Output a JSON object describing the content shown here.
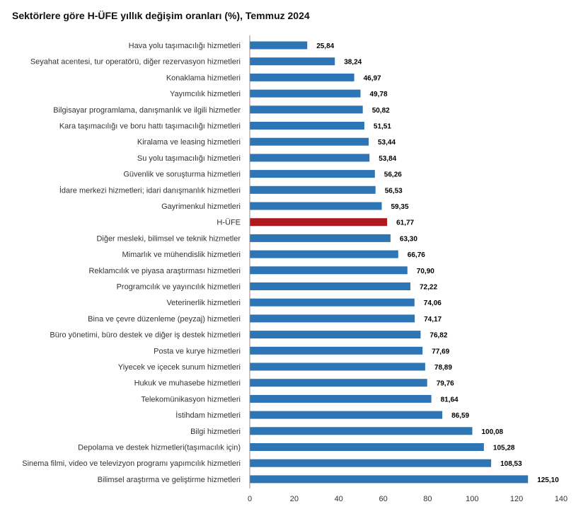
{
  "chart_data": {
    "type": "bar",
    "orientation": "horizontal",
    "title": "Sektörlere göre H-ÜFE yıllık değişim oranları (%), Temmuz 2024",
    "xlabel": "",
    "ylabel": "",
    "xlim": [
      0,
      140
    ],
    "xticks": [
      0,
      20,
      40,
      60,
      80,
      100,
      120,
      140
    ],
    "categories": [
      "Hava yolu taşımacılığı hizmetleri",
      "Seyahat acentesi, tur operatörü, diğer rezervasyon hizmetleri",
      "Konaklama hizmetleri",
      "Yayımcılık hizmetleri",
      "Bilgisayar programlama, danışmanlık ve ilgili hizmetler",
      "Kara taşımacılığı ve boru hattı taşımacılığı hizmetleri",
      "Kiralama ve leasing hizmetleri",
      "Su yolu taşımacılığı hizmetleri",
      "Güvenlik ve soruşturma hizmetleri",
      "İdare merkezi hizmetleri; idari danışmanlık hizmetleri",
      "Gayrimenkul hizmetleri",
      "H-ÜFE",
      "Diğer mesleki, bilimsel ve teknik hizmetler",
      "Mimarlık ve mühendislik hizmetleri",
      "Reklamcılık ve piyasa araştırması hizmetleri",
      "Programcılık ve yayıncılık hizmetleri",
      "Veterinerlik hizmetleri",
      "Bina ve çevre düzenleme (peyzaj) hizmetleri",
      "Büro yönetimi, büro destek ve diğer iş destek hizmetleri",
      "Posta ve kurye hizmetleri",
      "Yiyecek ve içecek sunum hizmetleri",
      "Hukuk ve muhasebe hizmetleri",
      "Telekomünikasyon hizmetleri",
      "İstihdam hizmetleri",
      "Bilgi hizmetleri",
      "Depolama ve destek hizmetleri(taşımacılık için)",
      "Sinema filmi, video ve televizyon programı yapımcılık hizmetleri",
      "Bilimsel araştırma ve geliştirme hizmetleri"
    ],
    "values": [
      25.84,
      38.24,
      46.97,
      49.78,
      50.82,
      51.51,
      53.44,
      53.84,
      56.26,
      56.53,
      59.35,
      61.77,
      63.3,
      66.76,
      70.9,
      72.22,
      74.06,
      74.17,
      76.82,
      77.69,
      78.89,
      79.76,
      81.64,
      86.59,
      100.08,
      105.28,
      108.53,
      125.1
    ],
    "value_labels": [
      "25,84",
      "38,24",
      "46,97",
      "49,78",
      "50,82",
      "51,51",
      "53,44",
      "53,84",
      "56,26",
      "56,53",
      "59,35",
      "61,77",
      "63,30",
      "66,76",
      "70,90",
      "72,22",
      "74,06",
      "74,17",
      "76,82",
      "77,69",
      "78,89",
      "79,76",
      "81,64",
      "86,59",
      "100,08",
      "105,28",
      "108,53",
      "125,10"
    ],
    "highlight_category": "H-ÜFE",
    "colors": {
      "bar": "#2e75b6",
      "highlight": "#b01a1f",
      "axis": "#8c8c8c"
    },
    "grid": false,
    "legend": "none"
  }
}
